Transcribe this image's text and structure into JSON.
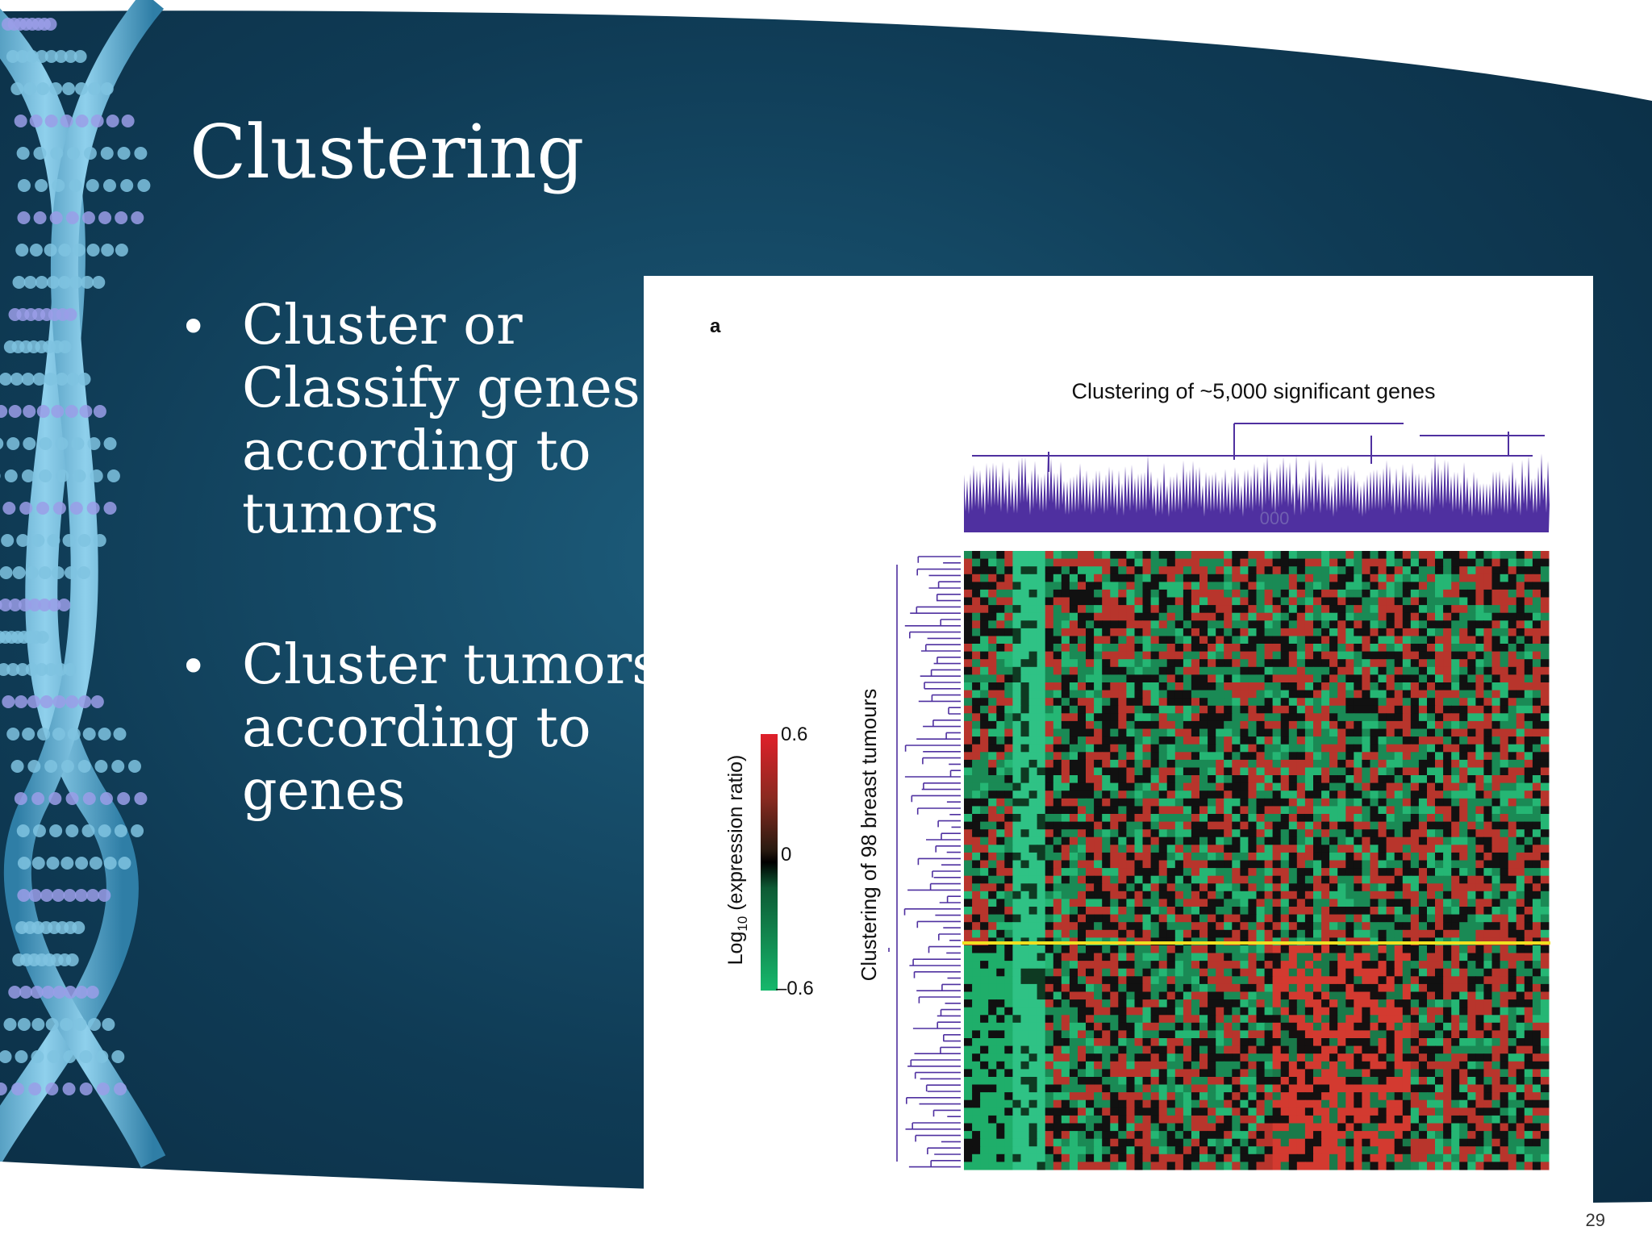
{
  "slide": {
    "title": "Clustering",
    "bullets": [
      [
        "Cluster or",
        "Classify genes",
        "according to",
        "tumors"
      ],
      [
        "Cluster tumors",
        "according to",
        "genes"
      ]
    ],
    "page_number": "29"
  },
  "figure": {
    "panel_label": "a",
    "title": "Clustering of ~5,000 significant genes",
    "dendrogram_label": "000",
    "row_label": "Clustering of 98 breast tumours",
    "colorbar_label": {
      "base": "Log",
      "sub": "10",
      "rest": " (expression ratio)"
    },
    "colorbar_ticks": [
      "0.6",
      "0",
      "–0.6"
    ]
  }
}
